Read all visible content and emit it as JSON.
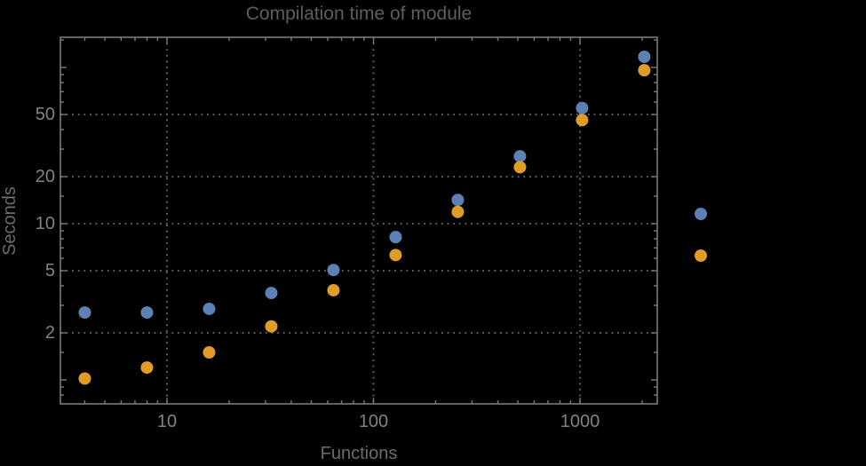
{
  "title": "Compilation time of module",
  "colors": {
    "background": "#000000",
    "frame": "#7a7a7a",
    "gridline": "#6b6b6b",
    "tick_label": "#828282",
    "axis_name": "#6c6c6c",
    "title": "#5e5e5e",
    "series_blue": "#5e81b5",
    "series_orange": "#e19c24"
  },
  "chart_data": {
    "type": "scatter",
    "title": "Compilation time of module",
    "xlabel": "Functions",
    "ylabel": "Seconds",
    "x_scale": "log",
    "y_scale": "log",
    "x_range": [
      3.05,
      2370
    ],
    "y_range": [
      0.69,
      156
    ],
    "grid": "dotted",
    "x": [
      4,
      8,
      16,
      32,
      64,
      128,
      256,
      512,
      1024,
      2048
    ],
    "series": [
      {
        "name": "series-1-blue",
        "color": "#5e81b5",
        "values": [
          2.7,
          2.7,
          2.85,
          3.6,
          5.05,
          8.2,
          14.2,
          27,
          55,
          117
        ]
      },
      {
        "name": "series-2-orange",
        "color": "#e19c24",
        "values": [
          1.02,
          1.2,
          1.5,
          2.2,
          3.75,
          6.3,
          11.9,
          23,
          46,
          96
        ]
      }
    ],
    "x_ticks": [
      {
        "value": 10,
        "label": "10"
      },
      {
        "value": 100,
        "label": "100"
      },
      {
        "value": 1000,
        "label": "1000"
      }
    ],
    "y_ticks": [
      {
        "value": 2,
        "label": "2"
      },
      {
        "value": 5,
        "label": "5"
      },
      {
        "value": 10,
        "label": "10"
      },
      {
        "value": 20,
        "label": "20"
      },
      {
        "value": 50,
        "label": "50"
      }
    ],
    "x_unlabeled_major_ticks": [],
    "y_unlabeled_major_ticks": [
      1,
      100
    ],
    "x_gridlines": [
      10,
      100,
      1000
    ],
    "y_gridlines": [
      2,
      5,
      10,
      20,
      50
    ],
    "legend_position": "right",
    "legend_markers": [
      {
        "name": "series-1-blue",
        "color": "#5e81b5"
      },
      {
        "name": "series-2-orange",
        "color": "#e19c24"
      }
    ]
  }
}
